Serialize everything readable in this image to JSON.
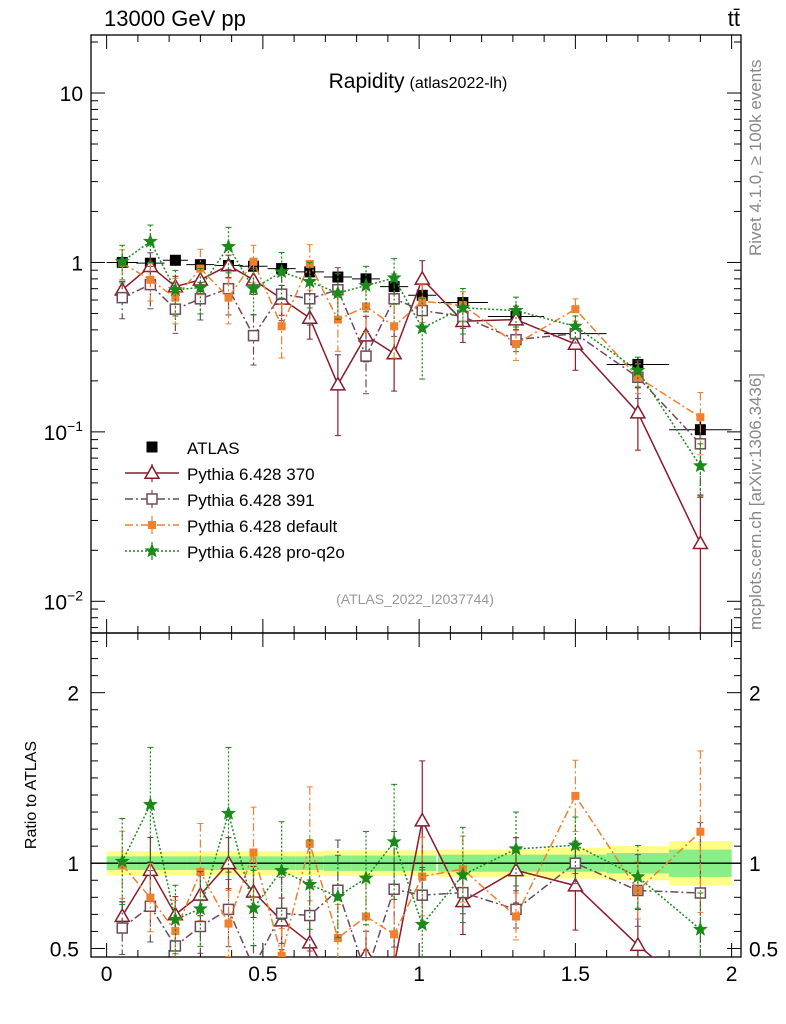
{
  "header": {
    "energy": "13000 GeV pp",
    "process": "tt̄",
    "title": "Rapidity",
    "analysis": "(atlas2022-lh)",
    "reference": "(ATLAS_2022_I2037744)",
    "rivet_note": "Rivet 4.1.0, ≥ 100k events",
    "site_note": "mcplots.cern.ch [arXiv:1306.3436]"
  },
  "axis_labels": {
    "ratio_ylabel": "Ratio to ATLAS",
    "main_y_ticks": [
      {
        "value": 10,
        "label": "10"
      },
      {
        "value": 1,
        "label": "1"
      },
      {
        "value": 0.1,
        "base": "10",
        "exp": "−1"
      },
      {
        "value": 0.01,
        "base": "10",
        "exp": "−2"
      }
    ],
    "ratio_y_ticks": [
      "2",
      "1",
      "0.5"
    ],
    "x_ticks": [
      "0",
      "0.5",
      "1",
      "1.5",
      "2"
    ]
  },
  "chart_data": {
    "type": "scatter",
    "title": "Rapidity (atlas2022-lh)",
    "xlim": [
      -0.05,
      2.03
    ],
    "ylim": [
      0.0065,
      22
    ],
    "yscale": "log",
    "ratio_ylim": [
      0.45,
      2.35
    ],
    "legend_position": "lower-left",
    "x": [
      0.05,
      0.14,
      0.22,
      0.3,
      0.39,
      0.47,
      0.56,
      0.65,
      0.74,
      0.83,
      0.92,
      1.01,
      1.14,
      1.31,
      1.5,
      1.7,
      1.9
    ],
    "xerr": [
      0.05,
      0.045,
      0.04,
      0.045,
      0.045,
      0.045,
      0.045,
      0.045,
      0.045,
      0.045,
      0.045,
      0.045,
      0.08,
      0.09,
      0.1,
      0.1,
      0.1
    ],
    "reference": {
      "name": "ATLAS",
      "values": [
        1.0,
        0.99,
        1.03,
        0.97,
        0.96,
        0.95,
        0.92,
        0.88,
        0.82,
        0.8,
        0.72,
        0.64,
        0.58,
        0.48,
        0.38,
        0.25,
        0.103
      ],
      "stat_rel": [
        0.04,
        0.04,
        0.04,
        0.04,
        0.04,
        0.04,
        0.04,
        0.04,
        0.045,
        0.045,
        0.045,
        0.045,
        0.05,
        0.05,
        0.05,
        0.06,
        0.08
      ],
      "total_rel": [
        0.07,
        0.07,
        0.07,
        0.07,
        0.07,
        0.07,
        0.07,
        0.07,
        0.075,
        0.075,
        0.075,
        0.075,
        0.08,
        0.08,
        0.09,
        0.1,
        0.13
      ]
    },
    "series": [
      {
        "name": "Pythia 6.428 370",
        "color": "#8b1a2b",
        "marker": "triangle-open",
        "line": "solid",
        "values": [
          0.69,
          0.95,
          0.72,
          0.79,
          0.96,
          0.79,
          0.61,
          0.47,
          0.19,
          0.37,
          0.29,
          0.8,
          0.45,
          0.46,
          0.33,
          0.13,
          0.022
        ],
        "rel_err": [
          0.12,
          0.2,
          0.15,
          0.15,
          0.15,
          0.18,
          0.2,
          0.25,
          0.5,
          0.3,
          0.4,
          0.28,
          0.25,
          0.2,
          0.3,
          0.4,
          0.9
        ]
      },
      {
        "name": "Pythia 6.428 391",
        "color": "#6b4a5a",
        "marker": "square-open",
        "line": "dashdot",
        "values": [
          0.62,
          0.74,
          0.53,
          0.61,
          0.7,
          0.37,
          0.65,
          0.61,
          0.69,
          0.28,
          0.61,
          0.52,
          0.48,
          0.35,
          0.38,
          0.21,
          0.085
        ],
        "rel_err": [
          0.25,
          0.28,
          0.28,
          0.25,
          0.3,
          0.33,
          0.3,
          0.3,
          0.35,
          0.4,
          0.4,
          0.2,
          0.15,
          0.15,
          0.12,
          0.25,
          0.5
        ]
      },
      {
        "name": "Pythia 6.428 default",
        "color": "#f07f2f",
        "marker": "square-filled",
        "line": "dashdot",
        "values": [
          0.99,
          0.79,
          0.62,
          0.92,
          0.62,
          1.01,
          0.42,
          0.98,
          0.46,
          0.55,
          0.42,
          0.59,
          0.56,
          0.33,
          0.53,
          0.21,
          0.122
        ],
        "rel_err": [
          0.2,
          0.25,
          0.3,
          0.3,
          0.3,
          0.25,
          0.35,
          0.3,
          0.35,
          0.3,
          0.35,
          0.25,
          0.2,
          0.2,
          0.15,
          0.2,
          0.4
        ]
      },
      {
        "name": "Pythia 6.428 pro-q2o",
        "color": "#1a8a1a",
        "marker": "star",
        "line": "dotted",
        "values": [
          1.01,
          1.33,
          0.69,
          0.71,
          1.24,
          0.7,
          0.88,
          0.77,
          0.66,
          0.73,
          0.81,
          0.41,
          0.54,
          0.52,
          0.42,
          0.23,
          0.063
        ],
        "rel_err": [
          0.25,
          0.25,
          0.3,
          0.3,
          0.3,
          0.3,
          0.3,
          0.3,
          0.3,
          0.3,
          0.3,
          0.5,
          0.3,
          0.2,
          0.15,
          0.2,
          0.35
        ]
      }
    ]
  }
}
